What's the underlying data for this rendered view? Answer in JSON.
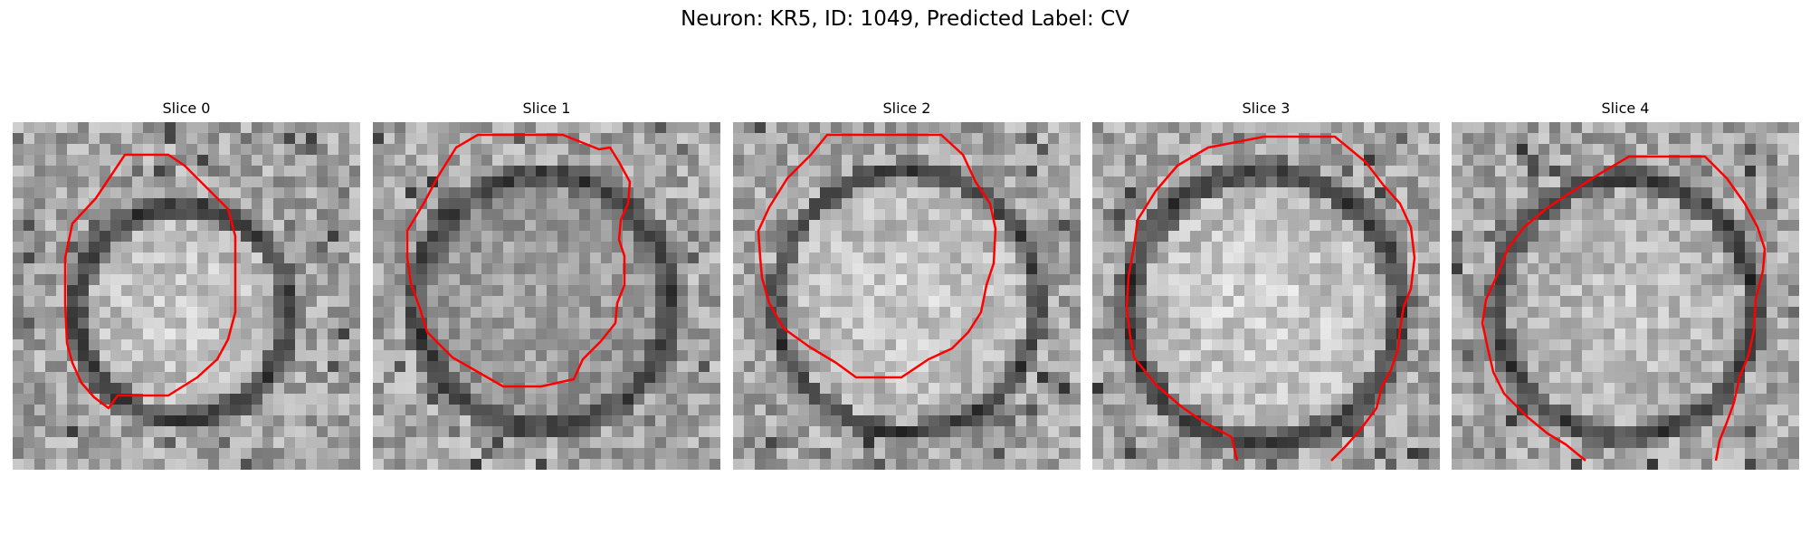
{
  "figure": {
    "title": "Neuron: KR5, ID: 1049, Predicted Label: CV"
  },
  "slices": [
    {
      "title": "Slice 0"
    },
    {
      "title": "Slice 1"
    },
    {
      "title": "Slice 2"
    },
    {
      "title": "Slice 3"
    },
    {
      "title": "Slice 4"
    }
  ],
  "colors": {
    "contour": "#ff0000",
    "colormap": "grayscale"
  }
}
